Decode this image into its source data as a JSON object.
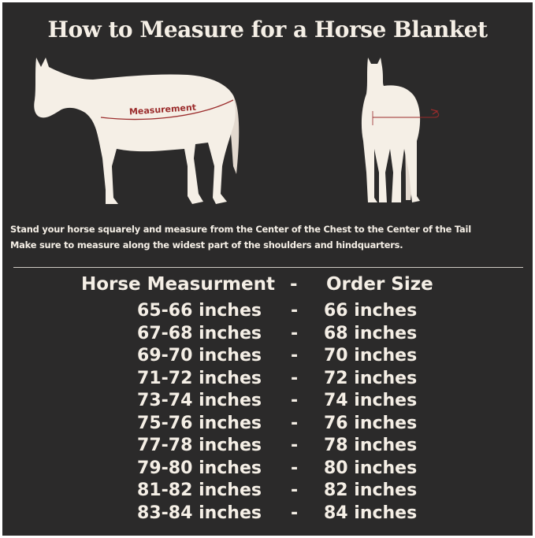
{
  "title": "How to Measure for a Horse Blanket",
  "diagram_label": "Measurement",
  "instructions": [
    "Stand your horse squarely and measure from the Center of the Chest to the Center of the Tail",
    "Make sure to measure along the widest part of the shoulders and hindquarters."
  ],
  "colors": {
    "background": "#2b2a2a",
    "text": "#f5efe6",
    "measurement_line": "#9b2c2c"
  },
  "size_table": {
    "headers": [
      "Horse Measurment",
      "-",
      "Order Size"
    ],
    "rows": [
      [
        "65-66 inches",
        "-",
        "66 inches"
      ],
      [
        "67-68 inches",
        "-",
        "68 inches"
      ],
      [
        "69-70 inches",
        "-",
        "70 inches"
      ],
      [
        "71-72 inches",
        "-",
        "72 inches"
      ],
      [
        "73-74 inches",
        "-",
        "74 inches"
      ],
      [
        "75-76 inches",
        "-",
        "76 inches"
      ],
      [
        "77-78 inches",
        "-",
        "78 inches"
      ],
      [
        "79-80 inches",
        "-",
        "80 inches"
      ],
      [
        "81-82 inches",
        "-",
        "82 inches"
      ],
      [
        "83-84 inches",
        "-",
        "84 inches"
      ]
    ]
  }
}
